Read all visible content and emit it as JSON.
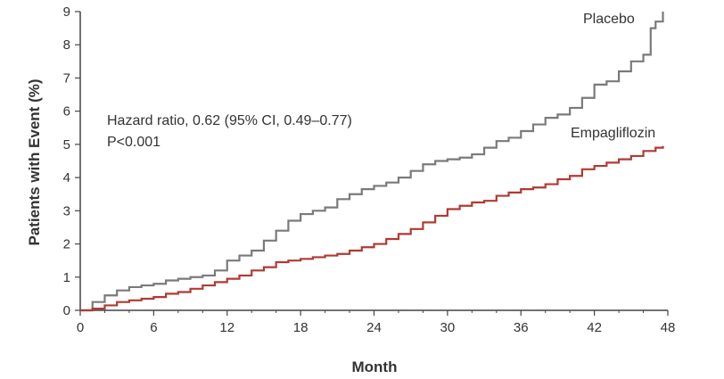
{
  "chart_data": {
    "type": "line",
    "step": true,
    "xlabel": "Month",
    "ylabel": "Patients with Event (%)",
    "xlim": [
      0,
      48
    ],
    "ylim": [
      0,
      9
    ],
    "xticks": [
      0,
      6,
      12,
      18,
      24,
      30,
      36,
      42,
      48
    ],
    "yticks": [
      0,
      1,
      2,
      3,
      4,
      5,
      6,
      7,
      8,
      9
    ],
    "grid": false,
    "annotations": [
      "Hazard ratio, 0.62 (95% CI, 0.49–0.77)",
      "P<0.001"
    ],
    "series": [
      {
        "name": "Placebo",
        "color": "#7a7a7a",
        "x": [
          0,
          1,
          2,
          3,
          4,
          5,
          6,
          7,
          8,
          9,
          10,
          11,
          12,
          13,
          14,
          15,
          16,
          17,
          18,
          19,
          20,
          21,
          22,
          23,
          24,
          25,
          26,
          27,
          28,
          29,
          30,
          31,
          32,
          33,
          34,
          35,
          36,
          37,
          38,
          39,
          40,
          41,
          42,
          43,
          44,
          45,
          46,
          46.6,
          47,
          47.6
        ],
        "values": [
          0,
          0.25,
          0.45,
          0.6,
          0.7,
          0.75,
          0.8,
          0.9,
          0.95,
          1.0,
          1.05,
          1.2,
          1.5,
          1.65,
          1.8,
          2.1,
          2.4,
          2.7,
          2.9,
          3.0,
          3.1,
          3.35,
          3.5,
          3.65,
          3.75,
          3.85,
          4.0,
          4.2,
          4.4,
          4.5,
          4.55,
          4.6,
          4.7,
          4.9,
          5.1,
          5.2,
          5.4,
          5.6,
          5.8,
          5.9,
          6.1,
          6.4,
          6.8,
          6.9,
          7.2,
          7.5,
          7.7,
          8.5,
          8.7,
          9.0
        ]
      },
      {
        "name": "Empagliflozin",
        "color": "#b03a32",
        "x": [
          0,
          1,
          2,
          3,
          4,
          5,
          6,
          7,
          8,
          9,
          10,
          11,
          12,
          13,
          14,
          15,
          16,
          17,
          18,
          19,
          20,
          21,
          22,
          23,
          24,
          25,
          26,
          27,
          28,
          29,
          30,
          31,
          32,
          33,
          34,
          35,
          36,
          37,
          38,
          39,
          40,
          41,
          42,
          43,
          44,
          45,
          46,
          47,
          47.6
        ],
        "values": [
          0,
          0.05,
          0.15,
          0.25,
          0.3,
          0.35,
          0.4,
          0.5,
          0.55,
          0.65,
          0.75,
          0.85,
          0.95,
          1.05,
          1.2,
          1.3,
          1.45,
          1.5,
          1.55,
          1.6,
          1.65,
          1.7,
          1.8,
          1.9,
          2.0,
          2.15,
          2.3,
          2.45,
          2.65,
          2.85,
          3.05,
          3.15,
          3.25,
          3.3,
          3.45,
          3.55,
          3.65,
          3.7,
          3.8,
          3.95,
          4.05,
          4.25,
          4.35,
          4.45,
          4.55,
          4.65,
          4.8,
          4.9,
          4.95
        ]
      }
    ]
  }
}
